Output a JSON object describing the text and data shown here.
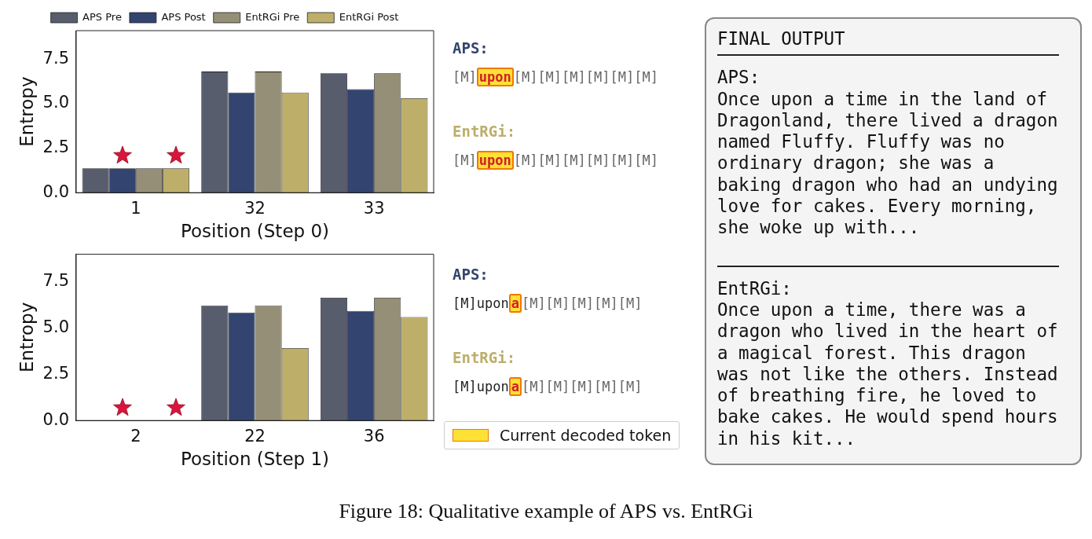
{
  "chart_data": [
    {
      "type": "bar",
      "xlabel": "Position (Step 0)",
      "ylabel": "Entropy",
      "categories": [
        "1",
        "32",
        "33"
      ],
      "legend": "top",
      "ylim": [
        0,
        9.1
      ],
      "yticks": [
        {
          "value": 0,
          "label": "0.0"
        },
        {
          "value": 2.5,
          "label": "2.5"
        },
        {
          "value": 5,
          "label": "5.0"
        },
        {
          "value": 7.5,
          "label": "7.5"
        }
      ],
      "series": [
        {
          "name": "APS Pre",
          "color": "#575d6d",
          "values": [
            1.37,
            6.8,
            6.71
          ]
        },
        {
          "name": "APS Post",
          "color": "#334470",
          "values": [
            1.37,
            5.63,
            5.81
          ]
        },
        {
          "name": "EntRGi Pre",
          "color": "#958f77",
          "values": [
            1.37,
            6.8,
            6.71
          ]
        },
        {
          "name": "EntRGi Post",
          "color": "#bdae6a",
          "values": [
            1.37,
            5.63,
            5.31
          ]
        }
      ]
    },
    {
      "type": "bar",
      "xlabel": "Position (Step 1)",
      "ylabel": "Entropy",
      "categories": [
        "2",
        "22",
        "36"
      ],
      "ylim": [
        0,
        9.0
      ],
      "yticks": [
        {
          "value": 0,
          "label": "0.0"
        },
        {
          "value": 2.5,
          "label": "2.5"
        },
        {
          "value": 5,
          "label": "5.0"
        },
        {
          "value": 7.5,
          "label": "7.5"
        }
      ],
      "series": [
        {
          "color": "#575d6d",
          "values": [
            0,
            6.23,
            6.65
          ]
        },
        {
          "color": "#334470",
          "values": [
            0,
            5.85,
            5.93
          ]
        },
        {
          "color": "#958f77",
          "values": [
            0,
            6.23,
            6.65
          ]
        },
        {
          "color": "#bdae6a",
          "values": [
            0,
            3.92,
            5.6
          ]
        }
      ]
    },
    {
      "type": "other",
      "annotations": [
        "APS:",
        "[M]",
        "upon",
        "[M][M][M][M][M][M]",
        "EntRGi:",
        "[M]",
        "upon",
        "[M][M][M][M][M][M]",
        "APS:",
        "[M]upon",
        "a",
        "[M][M][M][M][M]",
        "EntRGi:",
        "[M]upon",
        "a",
        "[M][M][M][M][M]",
        "Current decoded token"
      ]
    },
    {
      "type": "other",
      "title": "FINAL OUTPUT",
      "annotations": [
        "APS:",
        "Once upon a time in the land of Dragonland, there lived a dragon named Fluffy. Fluffy was no ordinary dragon; she was a baking dragon who had an undying love for cakes. Every morning, she woke up with...",
        "EntRGi:",
        "Once upon a time, there was a dragon who lived in the heart of a magical forest. This dragon was not like the others. Instead of breathing fire, he loved to bake cakes. He would spend hours in his kit..."
      ]
    },
    {
      "type": "other",
      "title": "Figure 18: Qualitative example of APS vs. EntRGi"
    }
  ]
}
